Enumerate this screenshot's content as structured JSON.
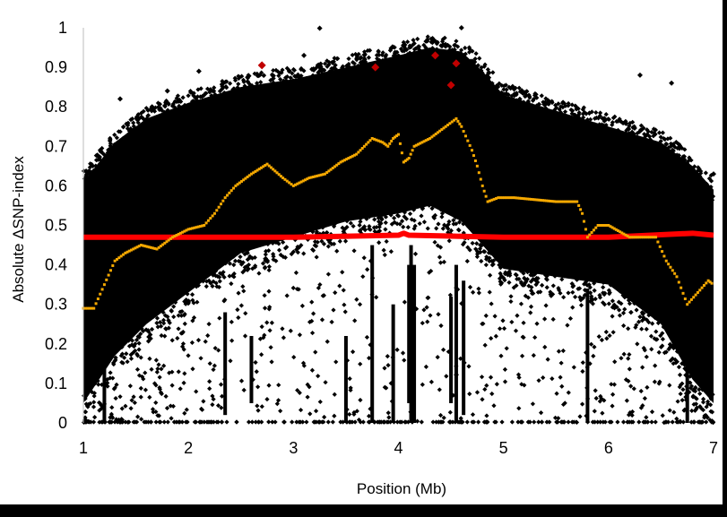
{
  "chart_data": {
    "type": "scatter",
    "title": "",
    "xlabel": "Position (Mb)",
    "ylabel": "Absolute ΔSNP-index",
    "xlim": [
      1,
      7
    ],
    "ylim": [
      0,
      1
    ],
    "x_ticks": [
      "1",
      "2",
      "3",
      "4",
      "5",
      "6",
      "7"
    ],
    "y_ticks": [
      "0",
      "0.1",
      "0.2",
      "0.3",
      "0.4",
      "0.5",
      "0.6",
      "0.7",
      "0.8",
      "0.9",
      "1"
    ],
    "grid": false,
    "legend": "none",
    "colors": {
      "snps": "#000000",
      "highlight": "#c00000",
      "sliding_window": "#f5a800",
      "threshold": "#ff0000"
    },
    "series": [
      {
        "kind": "scatter",
        "envelope_upper": [
          [
            1.0,
            0.64
          ],
          [
            1.3,
            0.74
          ],
          [
            1.6,
            0.8
          ],
          [
            2.0,
            0.84
          ],
          [
            2.5,
            0.88
          ],
          [
            3.0,
            0.9
          ],
          [
            3.5,
            0.93
          ],
          [
            4.0,
            0.96
          ],
          [
            4.3,
            0.98
          ],
          [
            4.6,
            0.97
          ],
          [
            4.8,
            0.92
          ],
          [
            5.0,
            0.86
          ],
          [
            5.5,
            0.82
          ],
          [
            6.0,
            0.78
          ],
          [
            6.5,
            0.74
          ],
          [
            6.8,
            0.68
          ],
          [
            7.0,
            0.62
          ]
        ],
        "envelope_lower": [
          [
            1.0,
            0.0
          ],
          [
            1.3,
            0.12
          ],
          [
            1.6,
            0.2
          ],
          [
            2.0,
            0.28
          ],
          [
            2.5,
            0.38
          ],
          [
            3.0,
            0.42
          ],
          [
            3.5,
            0.46
          ],
          [
            4.0,
            0.48
          ],
          [
            4.3,
            0.5
          ],
          [
            4.6,
            0.46
          ],
          [
            4.8,
            0.4
          ],
          [
            5.0,
            0.34
          ],
          [
            5.5,
            0.32
          ],
          [
            6.0,
            0.3
          ],
          [
            6.5,
            0.2
          ],
          [
            6.8,
            0.06
          ],
          [
            7.0,
            0.0
          ]
        ],
        "outliers": [
          [
            1.35,
            0.82
          ],
          [
            1.8,
            0.84
          ],
          [
            2.1,
            0.89
          ],
          [
            3.25,
            0.999
          ],
          [
            3.1,
            0.93
          ],
          [
            4.6,
            1.0
          ],
          [
            6.3,
            0.88
          ],
          [
            6.6,
            0.86
          ],
          [
            7.0,
            0.63
          ]
        ],
        "vertical_streaks": [
          [
            3.5,
            0.0,
            0.22
          ],
          [
            3.75,
            0.0,
            0.45
          ],
          [
            3.95,
            0.0,
            0.3
          ],
          [
            4.1,
            0.05,
            0.4
          ],
          [
            4.12,
            0.0,
            0.45
          ],
          [
            4.15,
            0.0,
            0.4
          ],
          [
            4.5,
            0.05,
            0.32
          ],
          [
            4.55,
            0.0,
            0.4
          ],
          [
            4.62,
            0.02,
            0.36
          ],
          [
            5.8,
            0.0,
            0.34
          ],
          [
            6.75,
            0.0,
            0.3
          ],
          [
            1.2,
            0.0,
            0.3
          ],
          [
            2.35,
            0.02,
            0.28
          ],
          [
            2.6,
            0.05,
            0.22
          ]
        ]
      },
      {
        "kind": "scatter",
        "points": [
          [
            2.7,
            0.905
          ],
          [
            3.78,
            0.9
          ],
          [
            4.35,
            0.93
          ],
          [
            4.55,
            0.91
          ],
          [
            4.5,
            0.855
          ]
        ]
      },
      {
        "kind": "line",
        "points": [
          [
            1.0,
            0.29
          ],
          [
            1.1,
            0.29
          ],
          [
            1.2,
            0.35
          ],
          [
            1.3,
            0.41
          ],
          [
            1.4,
            0.43
          ],
          [
            1.55,
            0.45
          ],
          [
            1.7,
            0.44
          ],
          [
            1.85,
            0.47
          ],
          [
            2.0,
            0.49
          ],
          [
            2.15,
            0.5
          ],
          [
            2.25,
            0.53
          ],
          [
            2.35,
            0.57
          ],
          [
            2.45,
            0.6
          ],
          [
            2.6,
            0.63
          ],
          [
            2.75,
            0.655
          ],
          [
            2.9,
            0.62
          ],
          [
            3.0,
            0.6
          ],
          [
            3.15,
            0.62
          ],
          [
            3.3,
            0.63
          ],
          [
            3.45,
            0.66
          ],
          [
            3.6,
            0.68
          ],
          [
            3.75,
            0.72
          ],
          [
            3.85,
            0.71
          ],
          [
            3.9,
            0.7
          ],
          [
            3.95,
            0.72
          ],
          [
            4.0,
            0.73
          ],
          [
            4.05,
            0.66
          ],
          [
            4.1,
            0.67
          ],
          [
            4.15,
            0.7
          ],
          [
            4.3,
            0.72
          ],
          [
            4.45,
            0.75
          ],
          [
            4.55,
            0.77
          ],
          [
            4.6,
            0.75
          ],
          [
            4.7,
            0.69
          ],
          [
            4.75,
            0.65
          ],
          [
            4.8,
            0.6
          ],
          [
            4.85,
            0.56
          ],
          [
            4.95,
            0.57
          ],
          [
            5.1,
            0.57
          ],
          [
            5.3,
            0.565
          ],
          [
            5.5,
            0.56
          ],
          [
            5.7,
            0.56
          ],
          [
            5.75,
            0.53
          ],
          [
            5.8,
            0.47
          ],
          [
            5.9,
            0.5
          ],
          [
            6.0,
            0.5
          ],
          [
            6.2,
            0.47
          ],
          [
            6.35,
            0.47
          ],
          [
            6.45,
            0.47
          ],
          [
            6.55,
            0.41
          ],
          [
            6.65,
            0.37
          ],
          [
            6.75,
            0.3
          ],
          [
            6.85,
            0.33
          ],
          [
            6.95,
            0.36
          ],
          [
            7.0,
            0.35
          ]
        ]
      },
      {
        "kind": "line",
        "points": [
          [
            1.0,
            0.47
          ],
          [
            2.0,
            0.47
          ],
          [
            3.0,
            0.47
          ],
          [
            4.0,
            0.475
          ],
          [
            4.05,
            0.48
          ],
          [
            4.1,
            0.475
          ],
          [
            5.0,
            0.47
          ],
          [
            6.0,
            0.47
          ],
          [
            6.8,
            0.48
          ],
          [
            7.0,
            0.475
          ]
        ]
      }
    ]
  }
}
